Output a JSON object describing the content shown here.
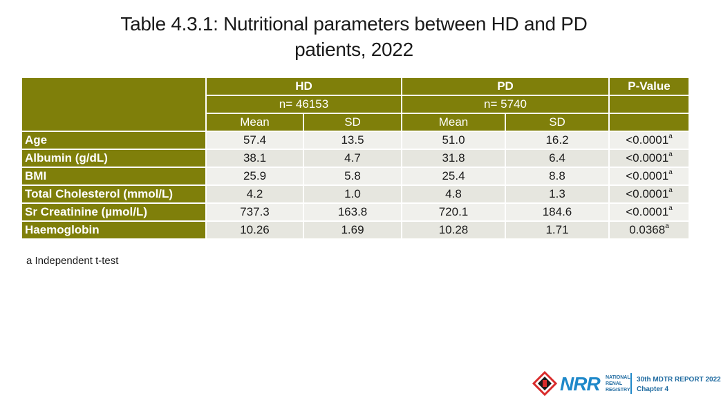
{
  "title": {
    "line1": "Table 4.3.1: Nutritional parameters between HD and PD",
    "line2": "patients, 2022"
  },
  "table": {
    "groups": [
      {
        "name": "HD",
        "n": "n= 46153"
      },
      {
        "name": "PD",
        "n": "n= 5740"
      }
    ],
    "pvalue_header": "P-Value",
    "subheaders": [
      "Mean",
      "SD",
      "Mean",
      "SD"
    ],
    "rows": [
      {
        "label": "Age",
        "hd_mean": "57.4",
        "hd_sd": "13.5",
        "pd_mean": "51.0",
        "pd_sd": "16.2",
        "p": "<0.0001",
        "p_sup": "a"
      },
      {
        "label": "Albumin (g/dL)",
        "hd_mean": "38.1",
        "hd_sd": "4.7",
        "pd_mean": "31.8",
        "pd_sd": "6.4",
        "p": "<0.0001",
        "p_sup": "a"
      },
      {
        "label": "BMI",
        "hd_mean": "25.9",
        "hd_sd": "5.8",
        "pd_mean": "25.4",
        "pd_sd": "8.8",
        "p": "<0.0001",
        "p_sup": "a"
      },
      {
        "label": "Total Cholesterol (mmol/L)",
        "hd_mean": "4.2",
        "hd_sd": "1.0",
        "pd_mean": "4.8",
        "pd_sd": "1.3",
        "p": "<0.0001",
        "p_sup": "a"
      },
      {
        "label": "Sr Creatinine (µmol/L)",
        "hd_mean": "737.3",
        "hd_sd": "163.8",
        "pd_mean": "720.1",
        "pd_sd": "184.6",
        "p": "<0.0001",
        "p_sup": "a"
      },
      {
        "label": "Haemoglobin",
        "hd_mean": "10.26",
        "hd_sd": "1.69",
        "pd_mean": "10.28",
        "pd_sd": "1.71",
        "p": "0.0368",
        "p_sup": "a"
      }
    ]
  },
  "footnote": "a Independent t-test",
  "logo": {
    "brand": "NRR",
    "brand_lines": [
      "NATIONAL",
      "RENAL",
      "REGISTRY"
    ],
    "report_line1": "30th MDTR REPORT 2022",
    "report_line2": "Chapter 4"
  },
  "colors": {
    "header_olive": "#7f7f0a",
    "cell_light": "#f0f0ec",
    "brand_blue": "#1e88c9"
  }
}
